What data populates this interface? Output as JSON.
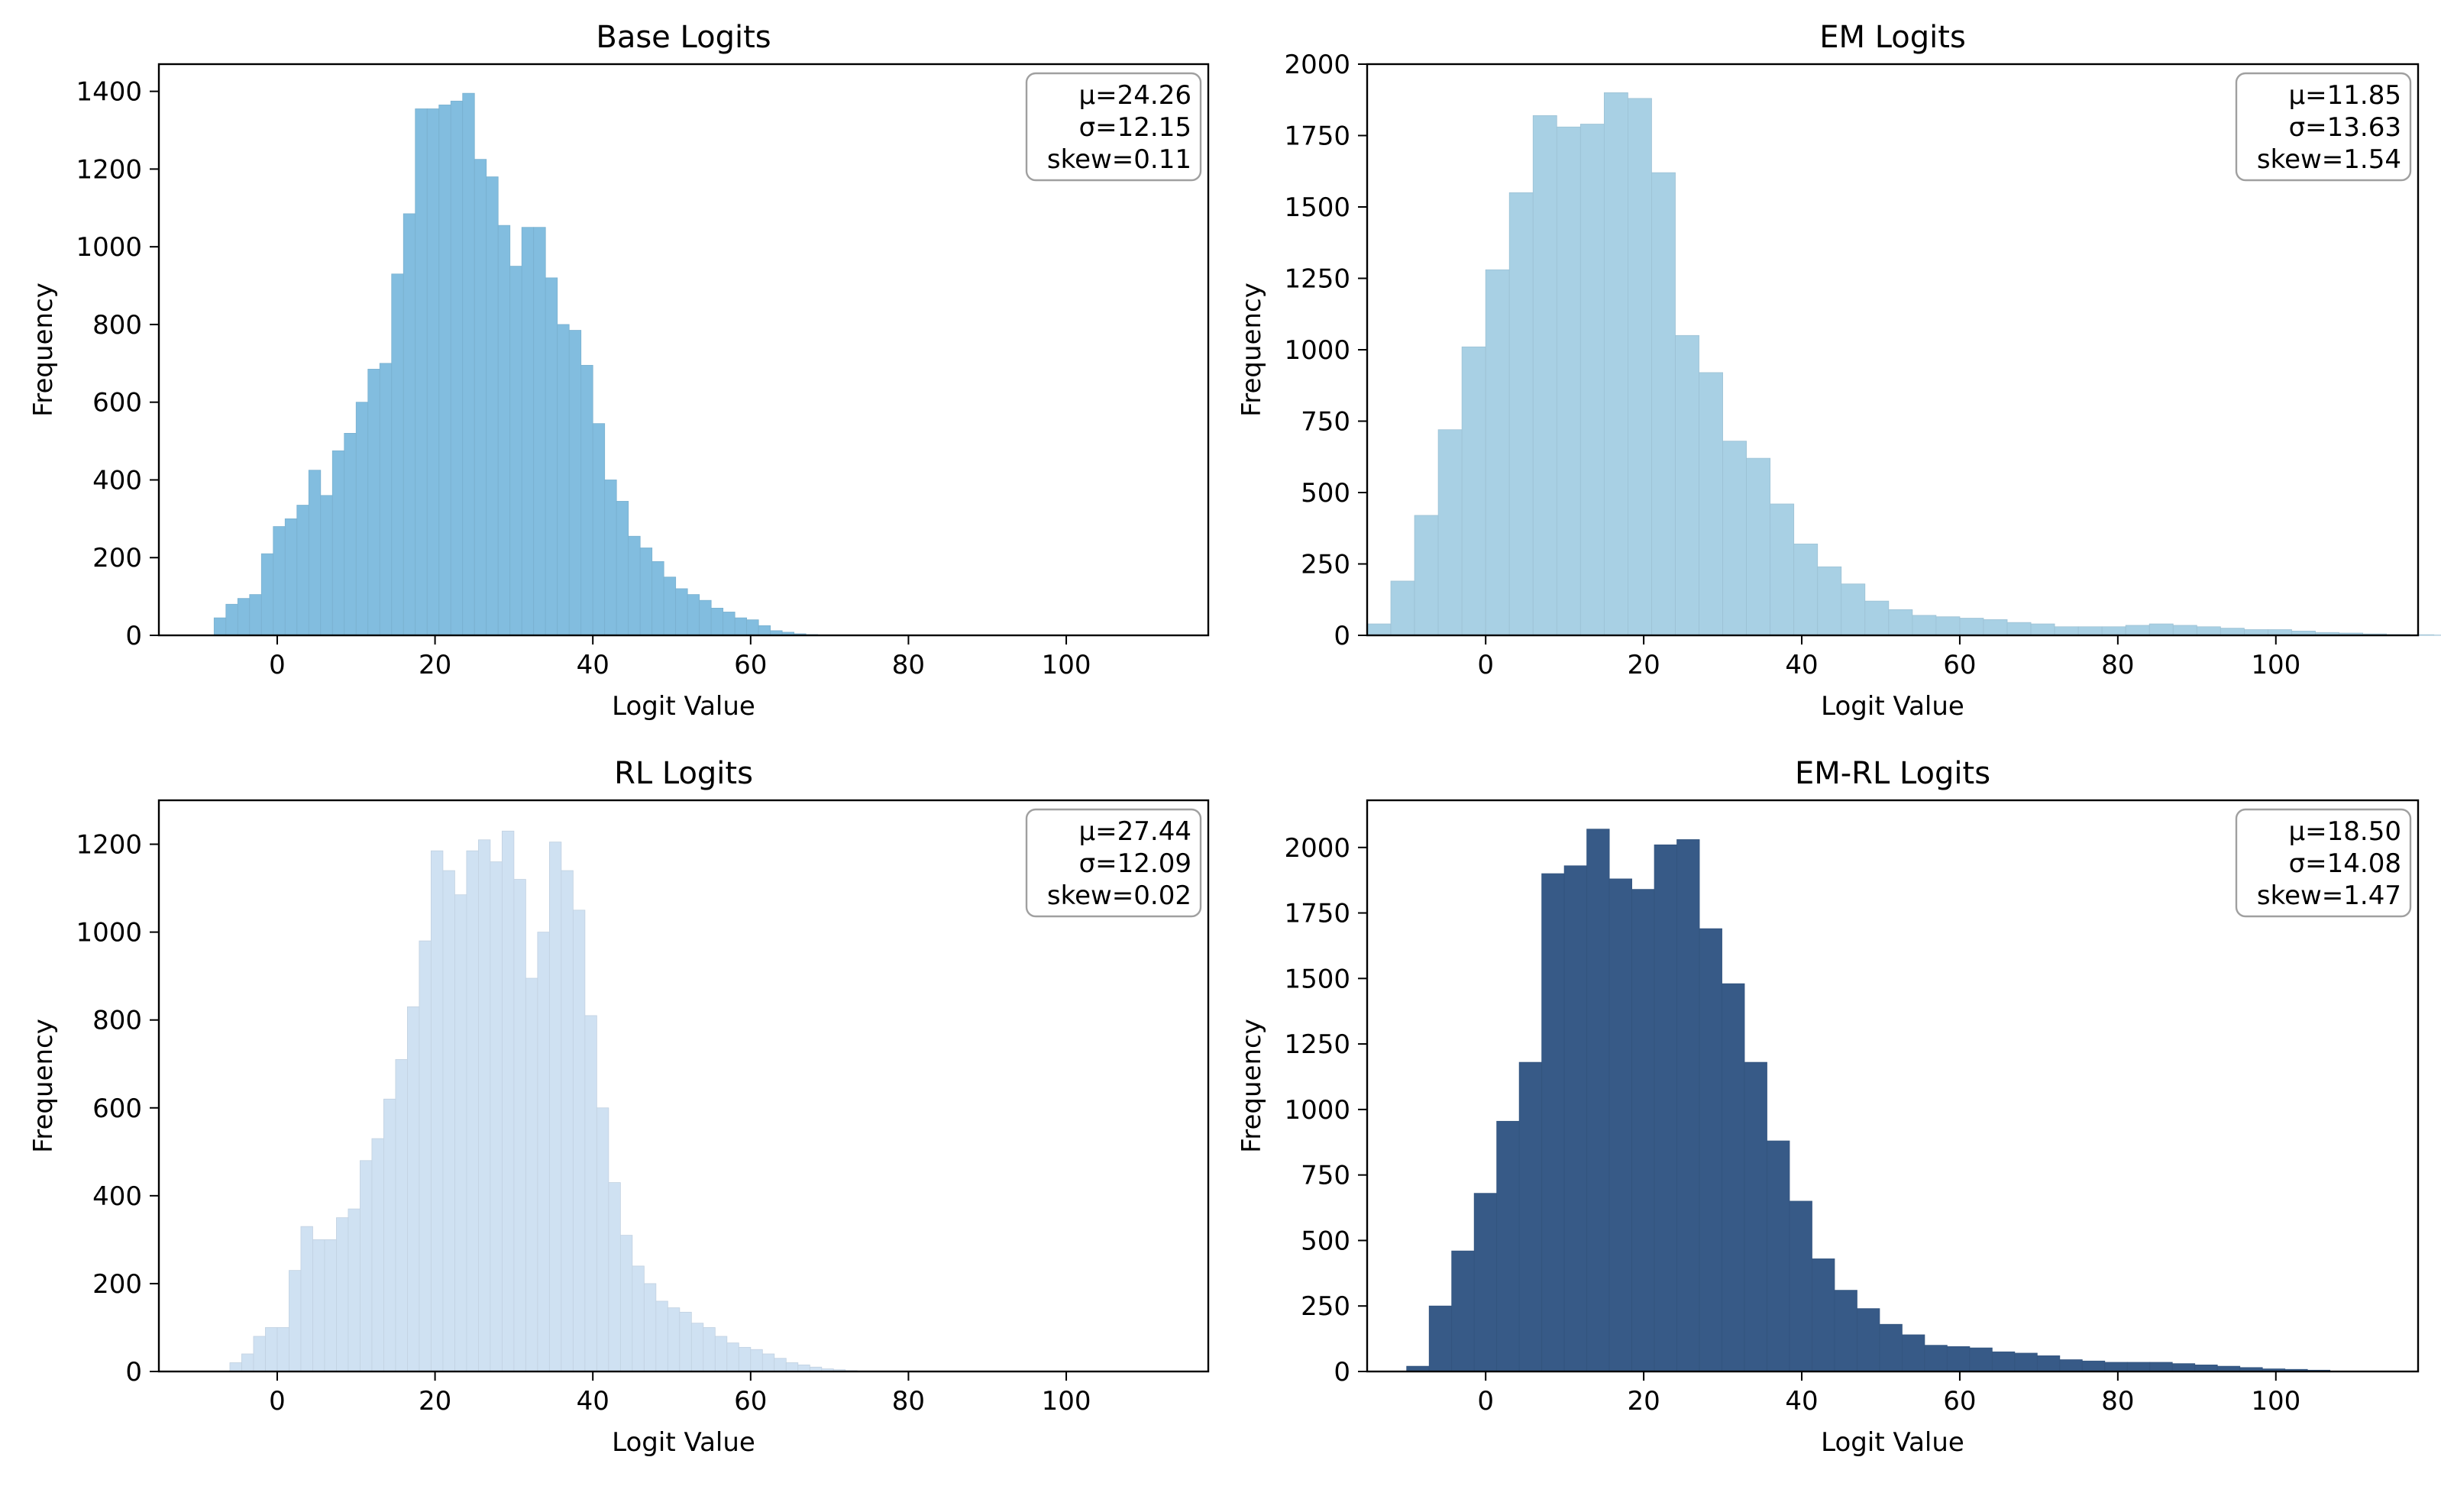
{
  "chart_data": [
    {
      "type": "bar",
      "title": "Base Logits",
      "xlabel": "Logit Value",
      "ylabel": "Frequency",
      "xlim": [
        -15,
        118
      ],
      "ylim": [
        0,
        1470
      ],
      "xticks": [
        0,
        20,
        40,
        60,
        80,
        100
      ],
      "yticks": [
        0,
        200,
        400,
        600,
        800,
        1000,
        1200,
        1400
      ],
      "color": "#82bddf",
      "bin_start": -8,
      "bin_width": 1.5,
      "values": [
        45,
        80,
        95,
        105,
        210,
        280,
        300,
        335,
        425,
        360,
        475,
        520,
        600,
        685,
        700,
        930,
        1085,
        1355,
        1355,
        1365,
        1375,
        1395,
        1225,
        1180,
        1055,
        950,
        1050,
        1050,
        920,
        800,
        785,
        695,
        545,
        400,
        345,
        255,
        225,
        190,
        150,
        120,
        105,
        90,
        70,
        60,
        45,
        40,
        25,
        12,
        8,
        4,
        2,
        1,
        1
      ],
      "stats": [
        "μ=24.26",
        "σ=12.15",
        "skew=0.11"
      ]
    },
    {
      "type": "bar",
      "title": "EM Logits",
      "xlabel": "Logit Value",
      "ylabel": "Frequency",
      "xlim": [
        -15,
        118
      ],
      "ylim": [
        0,
        2000
      ],
      "xticks": [
        0,
        20,
        40,
        60,
        80,
        100
      ],
      "yticks": [
        0,
        250,
        500,
        750,
        1000,
        1250,
        1500,
        1750,
        2000
      ],
      "color": "#a8d0e4",
      "bin_start": -15,
      "bin_width": 3,
      "values": [
        40,
        190,
        420,
        720,
        1010,
        1280,
        1550,
        1820,
        1780,
        1790,
        1900,
        1880,
        1620,
        1050,
        920,
        680,
        620,
        460,
        320,
        240,
        180,
        120,
        90,
        70,
        65,
        60,
        55,
        45,
        40,
        30,
        30,
        30,
        35,
        40,
        35,
        30,
        25,
        20,
        20,
        15,
        10,
        8,
        5,
        3,
        2,
        1
      ],
      "stats": [
        "μ=11.85",
        "σ=13.63",
        "skew=1.54"
      ]
    },
    {
      "type": "bar",
      "title": "RL Logits",
      "xlabel": "Logit Value",
      "ylabel": "Frequency",
      "xlim": [
        -15,
        118
      ],
      "ylim": [
        0,
        1300
      ],
      "xticks": [
        0,
        20,
        40,
        60,
        80,
        100
      ],
      "yticks": [
        0,
        200,
        400,
        600,
        800,
        1000,
        1200
      ],
      "color": "#cfe1f2",
      "bin_start": -6,
      "bin_width": 1.5,
      "values": [
        20,
        40,
        80,
        100,
        100,
        230,
        330,
        300,
        300,
        350,
        370,
        480,
        530,
        620,
        710,
        830,
        980,
        1185,
        1140,
        1085,
        1185,
        1210,
        1160,
        1230,
        1120,
        895,
        1000,
        1205,
        1140,
        1050,
        810,
        600,
        430,
        310,
        240,
        200,
        160,
        145,
        135,
        110,
        100,
        80,
        65,
        55,
        50,
        40,
        30,
        20,
        15,
        10,
        6,
        4,
        2,
        1,
        1
      ],
      "stats": [
        "μ=27.44",
        "σ=12.09",
        "skew=0.02"
      ]
    },
    {
      "type": "bar",
      "title": "EM-RL Logits",
      "xlabel": "Logit Value",
      "ylabel": "Frequency",
      "xlim": [
        -15,
        118
      ],
      "ylim": [
        0,
        2180
      ],
      "xticks": [
        0,
        20,
        40,
        60,
        80,
        100
      ],
      "yticks": [
        0,
        250,
        500,
        750,
        1000,
        1250,
        1500,
        1750,
        2000
      ],
      "color": "#375a87",
      "bin_start": -10,
      "bin_width": 2.85,
      "values": [
        20,
        250,
        460,
        680,
        955,
        1180,
        1900,
        1930,
        2070,
        1880,
        1840,
        2010,
        2030,
        1690,
        1480,
        1180,
        880,
        650,
        430,
        310,
        240,
        180,
        140,
        100,
        95,
        90,
        75,
        70,
        60,
        45,
        40,
        35,
        35,
        35,
        30,
        25,
        20,
        15,
        10,
        8,
        5
      ],
      "stats": [
        "μ=18.50",
        "σ=14.08",
        "skew=1.47"
      ]
    }
  ]
}
